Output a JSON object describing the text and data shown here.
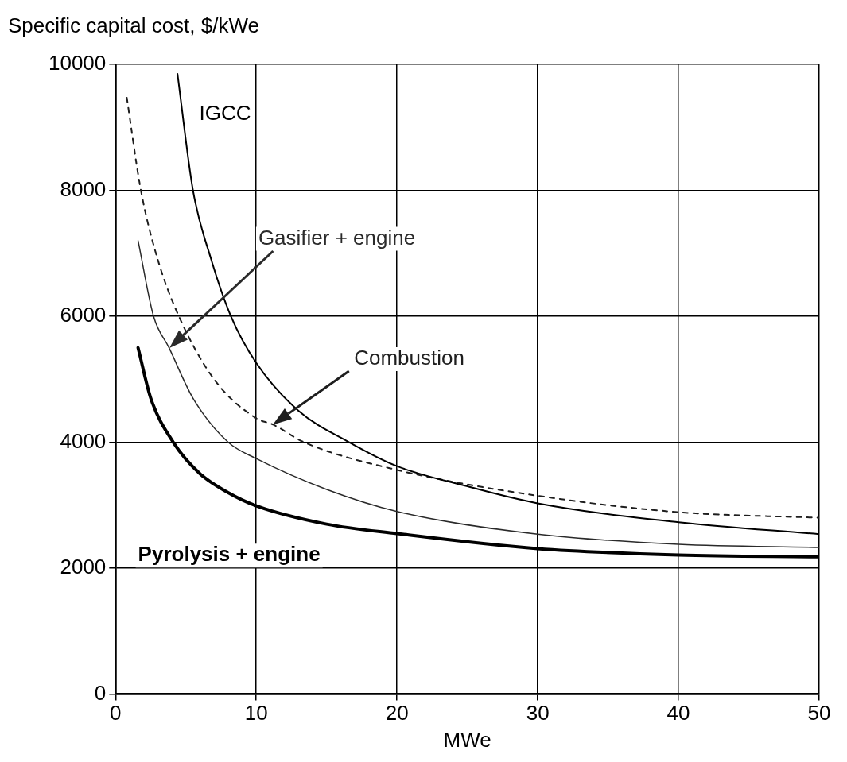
{
  "chart_data": {
    "type": "line",
    "ylabel": "Specific capital cost, $/kWe",
    "xlabel": "MWe",
    "xlim": [
      0,
      50
    ],
    "xticks": [
      0,
      10,
      20,
      30,
      40,
      50
    ],
    "ylim": [
      0,
      10000
    ],
    "yticks": [
      0,
      2000,
      4000,
      6000,
      8000,
      10000
    ],
    "grid": true,
    "legend": false,
    "marker": "none",
    "series": [
      {
        "name": "IGCC",
        "color": "#000000",
        "line_style": "solid",
        "x": [
          4.4,
          5.5,
          6.8,
          8.2,
          10,
          13,
          16.6,
          20,
          25,
          30,
          40,
          50
        ],
        "values": [
          9850,
          8000,
          6900,
          6000,
          5260,
          4500,
          4000,
          3620,
          3300,
          3030,
          2730,
          2540
        ]
      },
      {
        "name": "Combustion",
        "color": "#1e1e1e",
        "line_style": "dashed",
        "x": [
          0.8,
          1.8,
          3,
          4.5,
          7,
          10,
          11.2,
          13.4,
          20,
          30,
          40,
          50
        ],
        "values": [
          9470,
          8000,
          6900,
          6000,
          5000,
          4380,
          4280,
          4000,
          3560,
          3150,
          2890,
          2800
        ]
      },
      {
        "name": "Gasifier + engine",
        "color": "#2a2a2a",
        "line_style": "solid",
        "x": [
          1.6,
          2.7,
          3.8,
          5.5,
          8,
          10,
          15,
          20,
          30,
          40,
          50
        ],
        "values": [
          7200,
          6000,
          5500,
          4700,
          4000,
          3740,
          3250,
          2900,
          2540,
          2380,
          2330
        ]
      },
      {
        "name": "Pyrolysis + engine",
        "color": "#000000",
        "line_style": "solid",
        "x": [
          1.6,
          2.5,
          4.1,
          6,
          8,
          10,
          15,
          20,
          30,
          40,
          50
        ],
        "values": [
          5500,
          4700,
          4000,
          3500,
          3200,
          2990,
          2700,
          2550,
          2310,
          2210,
          2180
        ]
      }
    ]
  }
}
